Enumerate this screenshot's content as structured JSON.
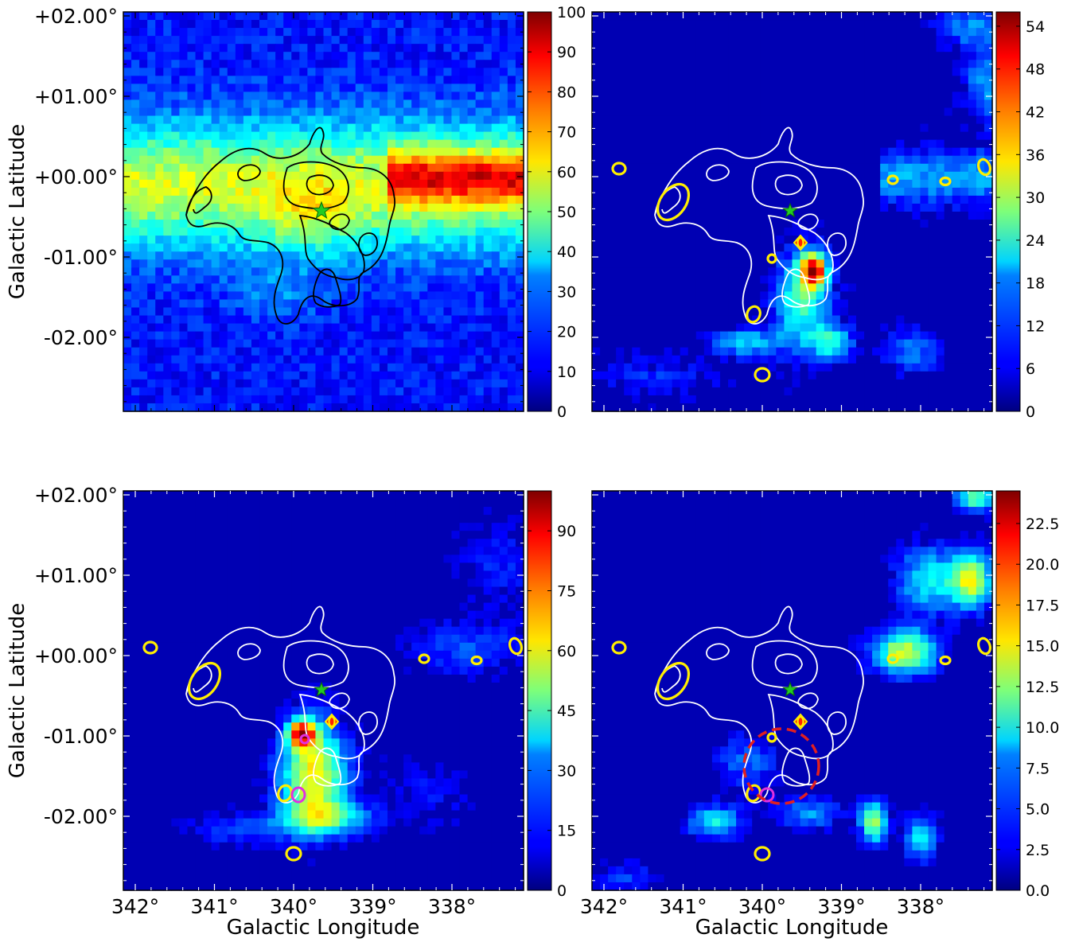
{
  "figure": {
    "x_axis_label": "Galactic Longitude",
    "y_axis_label": "Galactic Latitude"
  },
  "chart_data": [
    {
      "type": "heatmap",
      "panel": "top-left",
      "colormap": "jet",
      "contour_color": "#000000",
      "colorbar": {
        "range": [
          0,
          100
        ],
        "ticks": [
          "0",
          "10",
          "20",
          "30",
          "40",
          "50",
          "60",
          "70",
          "80",
          "90",
          "100"
        ]
      },
      "y_ticks": [
        "+02.00°",
        "+01.00°",
        "+00.00°",
        "-01.00°",
        "-02.00°"
      ],
      "x_ticks": [],
      "xlabel": "",
      "ylabel": "Galactic Latitude"
    },
    {
      "type": "heatmap",
      "panel": "top-right",
      "colormap": "jet",
      "contour_color": "#ffffff",
      "colorbar": {
        "range": [
          0,
          56
        ],
        "ticks": [
          "0",
          "6",
          "12",
          "18",
          "24",
          "30",
          "36",
          "42",
          "48",
          "54"
        ]
      },
      "y_ticks": [],
      "x_ticks": [],
      "xlabel": "",
      "ylabel": ""
    },
    {
      "type": "heatmap",
      "panel": "bottom-left",
      "colormap": "jet",
      "contour_color": "#ffffff",
      "colorbar": {
        "range": [
          0,
          100
        ],
        "ticks": [
          "0",
          "15",
          "30",
          "45",
          "60",
          "75",
          "90"
        ]
      },
      "y_ticks": [
        "+02.00°",
        "+01.00°",
        "+00.00°",
        "-01.00°",
        "-02.00°"
      ],
      "x_ticks": [
        "342°",
        "341°",
        "340°",
        "339°",
        "338°"
      ],
      "xlabel": "Galactic Longitude",
      "ylabel": "Galactic Latitude"
    },
    {
      "type": "heatmap",
      "panel": "bottom-right",
      "colormap": "jet",
      "contour_color": "#ffffff",
      "colorbar": {
        "range": [
          0,
          24.5
        ],
        "ticks": [
          "0.0",
          "2.5",
          "5.0",
          "7.5",
          "10.0",
          "12.5",
          "15.0",
          "17.5",
          "20.0",
          "22.5"
        ]
      },
      "y_ticks": [],
      "x_ticks": [
        "342°",
        "341°",
        "340°",
        "339°",
        "338°"
      ],
      "xlabel": "Galactic Longitude",
      "ylabel": ""
    }
  ],
  "markers": {
    "star_color": "#22cc22",
    "yellow_source_color": "#ffee00",
    "magenta_source_color": "#e030e0",
    "dashed_circle_color": "#e02020"
  }
}
